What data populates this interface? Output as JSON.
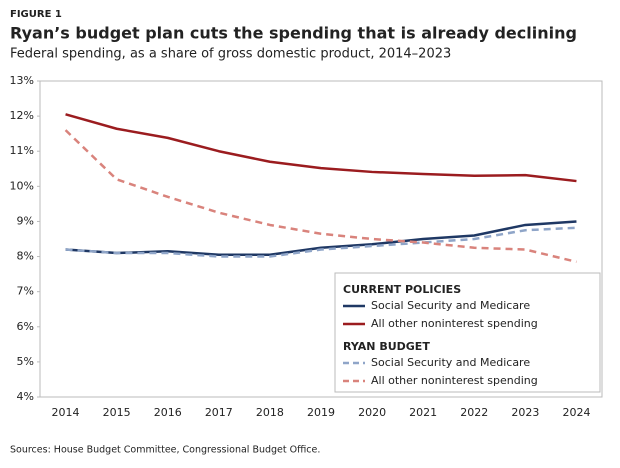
{
  "figure_label": "FIGURE 1",
  "chart_data": {
    "type": "line",
    "title": "Ryan’s budget plan cuts the spending that is already declining",
    "subtitle": "Federal spending, as a share of gross domestic product, 2014–2023",
    "source": "Sources: House Budget Committee, Congressional Budget Office.",
    "categories": [
      "2014",
      "2015",
      "2016",
      "2017",
      "2018",
      "2019",
      "2020",
      "2021",
      "2022",
      "2023",
      "2024"
    ],
    "ylim": [
      4,
      13
    ],
    "yticks": [
      {
        "value": 4,
        "label": "4%"
      },
      {
        "value": 5,
        "label": "5%"
      },
      {
        "value": 6,
        "label": "6%"
      },
      {
        "value": 7,
        "label": "7%"
      },
      {
        "value": 8,
        "label": "8%"
      },
      {
        "value": 9,
        "label": "9%"
      },
      {
        "value": 10,
        "label": "10%"
      },
      {
        "value": 11,
        "label": "11%"
      },
      {
        "value": 12,
        "label": "12%"
      },
      {
        "value": 13,
        "label": "13%"
      }
    ],
    "grid": false,
    "legend": "lower right",
    "series_groups": [
      {
        "name": "CURRENT POLICIES",
        "dashed": false,
        "series": [
          {
            "name": "Social Security and Medicare",
            "color": "#1f3864",
            "values": [
              8.2,
              8.1,
              8.15,
              8.05,
              8.05,
              8.25,
              8.35,
              8.5,
              8.6,
              8.9,
              9.0
            ]
          },
          {
            "name": "All other noninterest spending",
            "color": "#9b1c1f",
            "values": [
              12.05,
              11.64,
              11.38,
              11.0,
              10.7,
              10.52,
              10.41,
              10.35,
              10.3,
              10.32,
              10.15
            ]
          }
        ]
      },
      {
        "name": "RYAN BUDGET",
        "dashed": true,
        "series": [
          {
            "name": "Social Security and Medicare",
            "color": "#8fa5c8",
            "values": [
              8.2,
              8.1,
              8.1,
              8.0,
              8.0,
              8.2,
              8.3,
              8.4,
              8.5,
              8.75,
              8.82
            ]
          },
          {
            "name": "All other noninterest spending",
            "color": "#d9837c",
            "values": [
              11.6,
              10.2,
              9.7,
              9.25,
              8.9,
              8.65,
              8.5,
              8.4,
              8.25,
              8.2,
              7.85
            ]
          }
        ]
      }
    ]
  }
}
